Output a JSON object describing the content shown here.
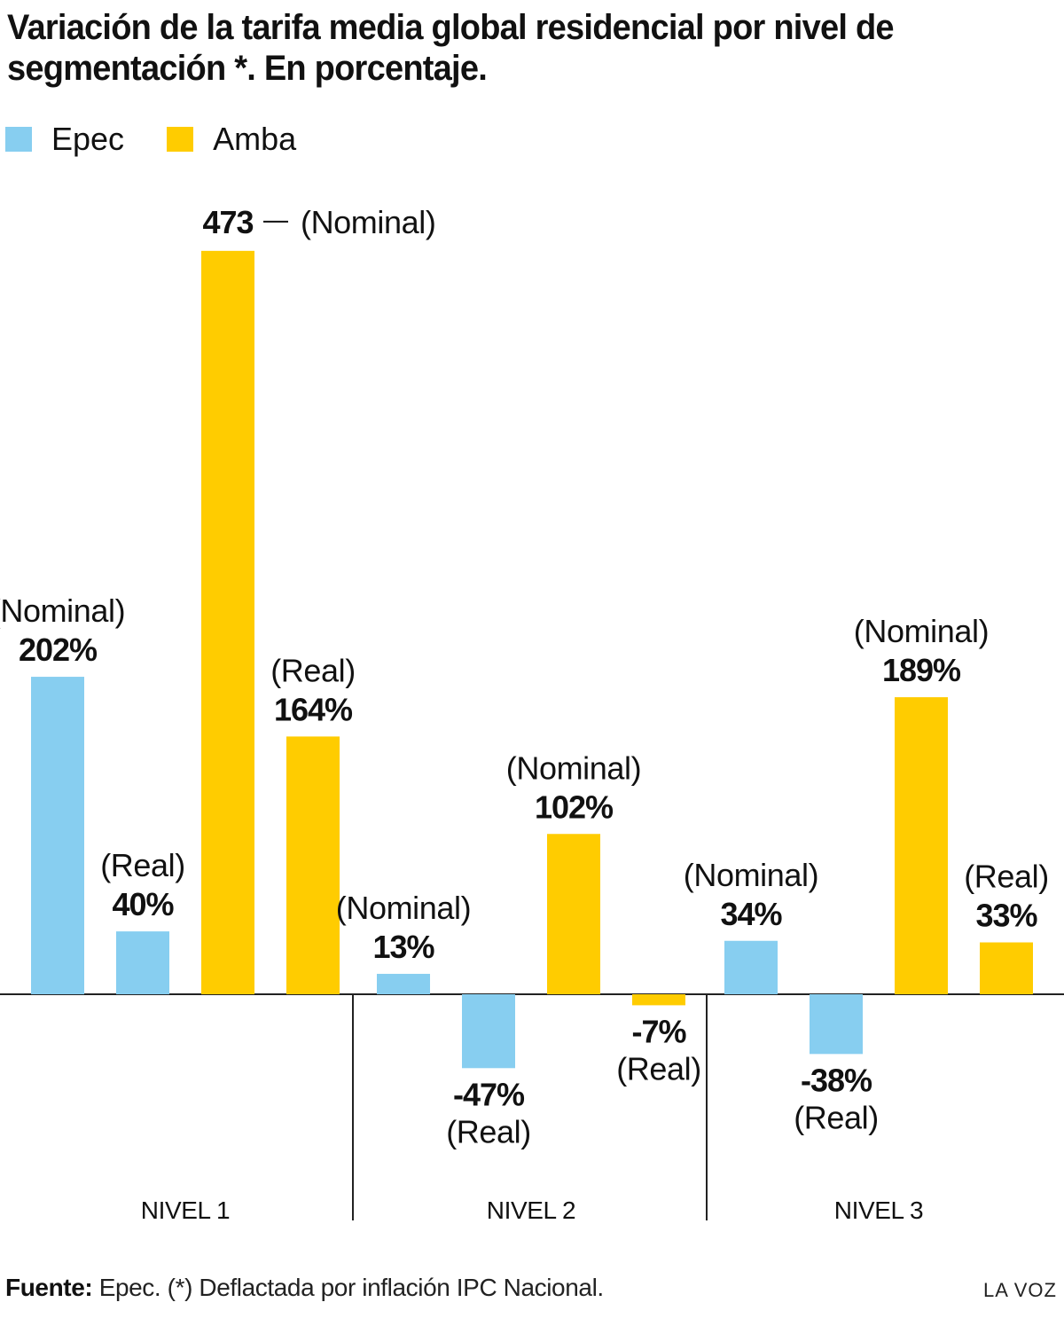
{
  "title": "Variación de la tarifa media global residencial por nivel de segmentación *. En porcentaje.",
  "legend": [
    {
      "label": "Epec",
      "color": "#87CEF0"
    },
    {
      "label": "Amba",
      "color": "#FFCC00"
    }
  ],
  "chart_data": {
    "type": "bar",
    "categories": [
      "NIVEL 1",
      "NIVEL 2",
      "NIVEL 3"
    ],
    "series": [
      {
        "name": "Epec",
        "color": "#87CEF0",
        "nominal": [
          202,
          13,
          34
        ],
        "real": [
          40,
          -47,
          -38
        ]
      },
      {
        "name": "Amba",
        "color": "#FFCC00",
        "nominal": [
          473,
          102,
          189
        ],
        "real": [
          164,
          -7,
          33
        ]
      }
    ],
    "bar_labels": {
      "nominal": "(Nominal)",
      "real": "(Real)",
      "value_texts": {
        "epec_nominal": [
          "202%",
          "13%",
          "34%"
        ],
        "epec_real": [
          "40%",
          "-47%",
          "-38%"
        ],
        "amba_nominal": [
          "473",
          "102%",
          "189%"
        ],
        "amba_real": [
          "164%",
          "-7%",
          "33%"
        ]
      }
    },
    "grid": false
  },
  "footer": {
    "source_label": "Fuente:",
    "source_text": " Epec. (*) Deflactada por inflación IPC Nacional."
  },
  "brand": "LA VOZ"
}
